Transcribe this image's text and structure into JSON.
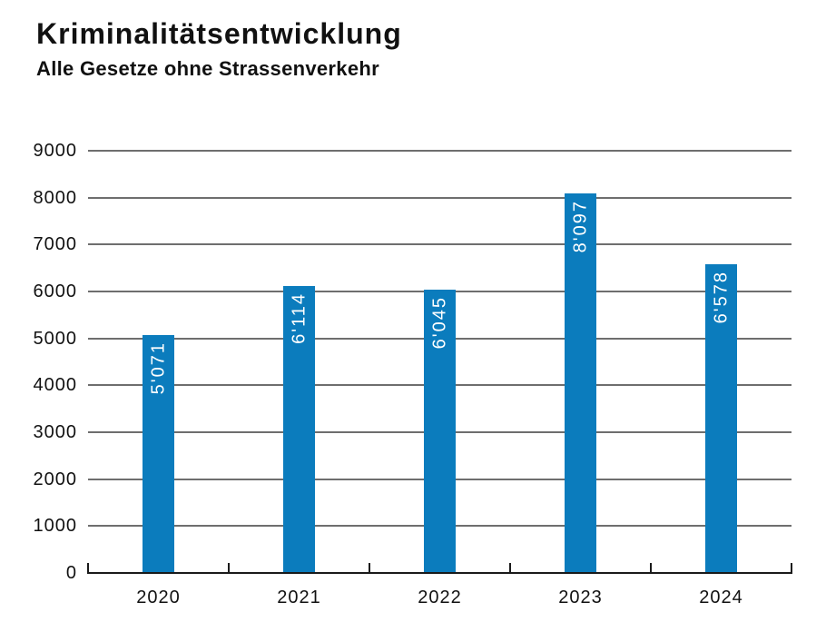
{
  "chart_data": {
    "type": "bar",
    "title": "Kriminalitätsentwicklung",
    "subtitle": "Alle Gesetze ohne Strassenverkehr",
    "categories": [
      "2020",
      "2021",
      "2022",
      "2023",
      "2024"
    ],
    "values": [
      5071,
      6114,
      6045,
      8097,
      6578
    ],
    "value_labels": [
      "5'071",
      "6'114",
      "6'045",
      "8'097",
      "6'578"
    ],
    "xlabel": "",
    "ylabel": "",
    "ylim": [
      0,
      9000
    ],
    "yticks": [
      0,
      1000,
      2000,
      3000,
      4000,
      5000,
      6000,
      7000,
      8000,
      9000
    ],
    "grid": "horizontal",
    "legend": null,
    "colors": {
      "bar": "#0b7cbd",
      "bar_label": "#ffffff",
      "gridline": "#6e6e6e",
      "axis": "#1a1a1a",
      "text": "#111111"
    }
  }
}
